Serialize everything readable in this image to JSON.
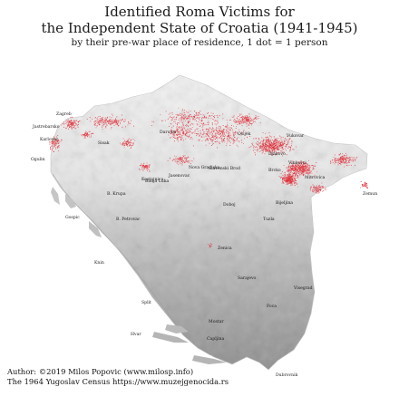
{
  "title_line1": "Identified Roma Victims for",
  "title_line2": "the Independent State of Croatia (1941-1945)",
  "subtitle": "by their pre-war place of residence, 1 dot = 1 person",
  "credit_author": "Author: ©2019 Milos Popovic (www.milosp.info)",
  "credit_source": "The 1964 Yugoslav Census https://www.muzejgenocida.rs",
  "colors": {
    "dot": "#e0303a",
    "relief_light": "#f1f1f1",
    "relief_dark": "#8e8e8e",
    "background": "#ffffff"
  },
  "cities": [
    "Zagreb",
    "Jastrebarsko",
    "Karlovac",
    "Ogulin",
    "Sisak",
    "Daruvar",
    "Osijek",
    "Vukovar",
    "Djakovo",
    "Vinkovci",
    "Nova Gradiska",
    "Slavonski Brod",
    "Brcko",
    "Mitrovica",
    "Zemun",
    "Bijeljina",
    "Jasenovac",
    "Kostajnica",
    "Banja Luka",
    "B. Krupa",
    "B. Petrovac",
    "Gospic",
    "Doboj",
    "Tuzla",
    "Zenica",
    "Sarajevo",
    "Knin",
    "Visegrad",
    "Mostar",
    "Foca",
    "Split",
    "Capljina",
    "Hvar",
    "Dubrovnik"
  ]
}
